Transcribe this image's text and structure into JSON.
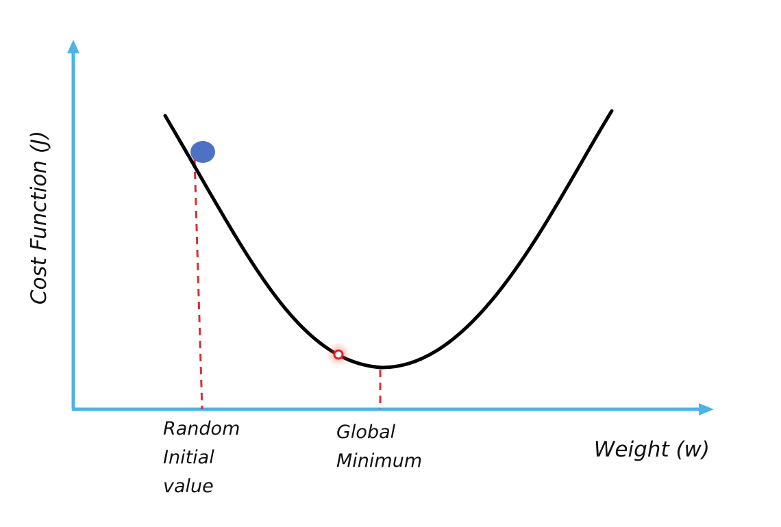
{
  "axes": {
    "y_label": "Cost Function (J)",
    "x_label": "Weight (w)"
  },
  "annotations": {
    "initial_value": [
      "Random",
      "Initial",
      "value"
    ],
    "global_minimum": [
      "Global",
      "Minimum"
    ]
  },
  "colors": {
    "axis": "#4db3e6",
    "curve": "#000000",
    "ball": "#4d72c4",
    "dashed_guide": "#d63030",
    "current_point": "#e02424"
  }
}
